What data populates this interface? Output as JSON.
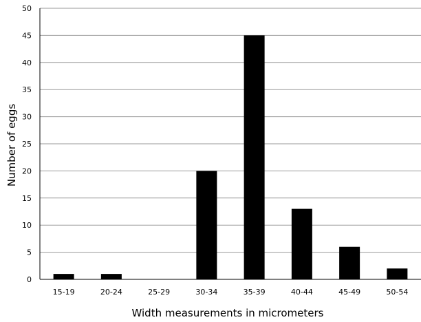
{
  "chart_data": {
    "type": "bar",
    "title": "",
    "xlabel": "Width measurements in micrometers",
    "ylabel": "Number of eggs",
    "categories": [
      "15-19",
      "20-24",
      "25-29",
      "30-34",
      "35-39",
      "40-44",
      "45-49",
      "50-54"
    ],
    "values": [
      1,
      1,
      0,
      20,
      45,
      13,
      6,
      2
    ],
    "ylim": [
      0,
      50
    ],
    "yticks": [
      0,
      5,
      10,
      15,
      20,
      25,
      30,
      35,
      40,
      45,
      50
    ],
    "grid": "horizontal",
    "bar_color": "#000000",
    "grid_color": "#9a9a9a"
  }
}
